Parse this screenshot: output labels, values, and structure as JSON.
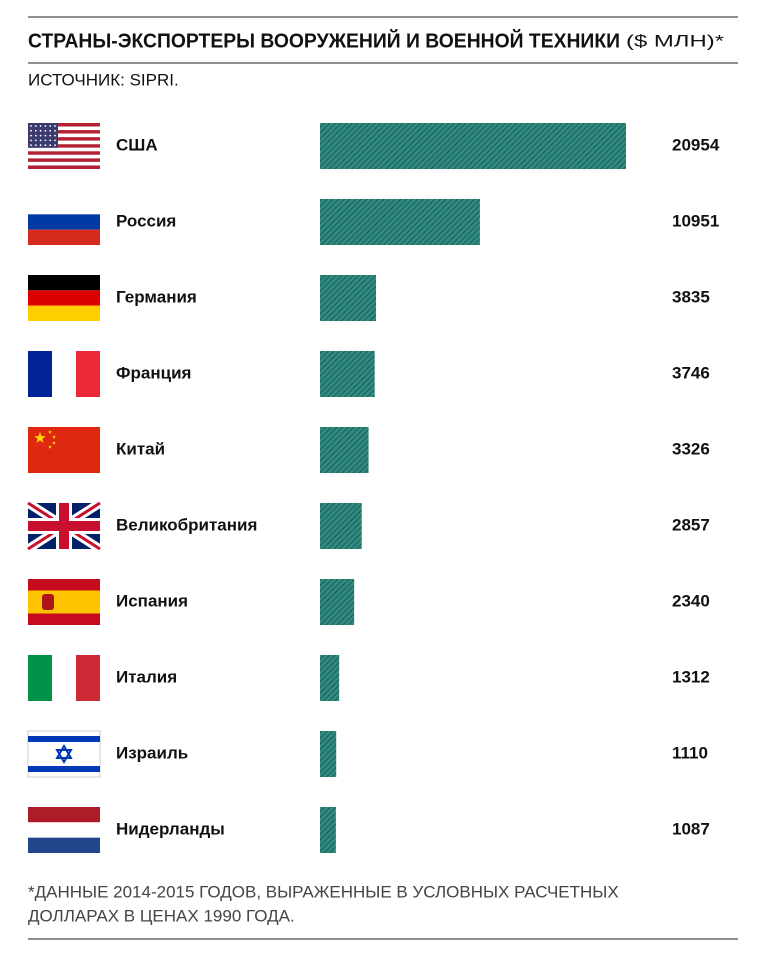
{
  "chart_data": {
    "type": "bar",
    "title": "СТРАНЫ-ЭКСПОРТЕРЫ ВООРУЖЕНИЙ И ВОЕННОЙ ТЕХНИКИ",
    "unit": "($ МЛН)*",
    "subtitle": "ИСТОЧНИК: SIPRI.",
    "categories": [
      "США",
      "Россия",
      "Германия",
      "Франция",
      "Китай",
      "Великобритания",
      "Испания",
      "Италия",
      "Израиль",
      "Нидерланды"
    ],
    "values": [
      20954,
      10951,
      3835,
      3746,
      3326,
      2857,
      2340,
      1312,
      1110,
      1087
    ],
    "color": "#2e8b80",
    "footnote": [
      "*ДАННЫЕ 2014-2015 ГОДОВ, ВЫРАЖЕННЫЕ В УСЛОВНЫХ РАСЧЕТНЫХ",
      "ДОЛЛАРАХ В ЦЕНАХ 1990 ГОДА."
    ]
  }
}
